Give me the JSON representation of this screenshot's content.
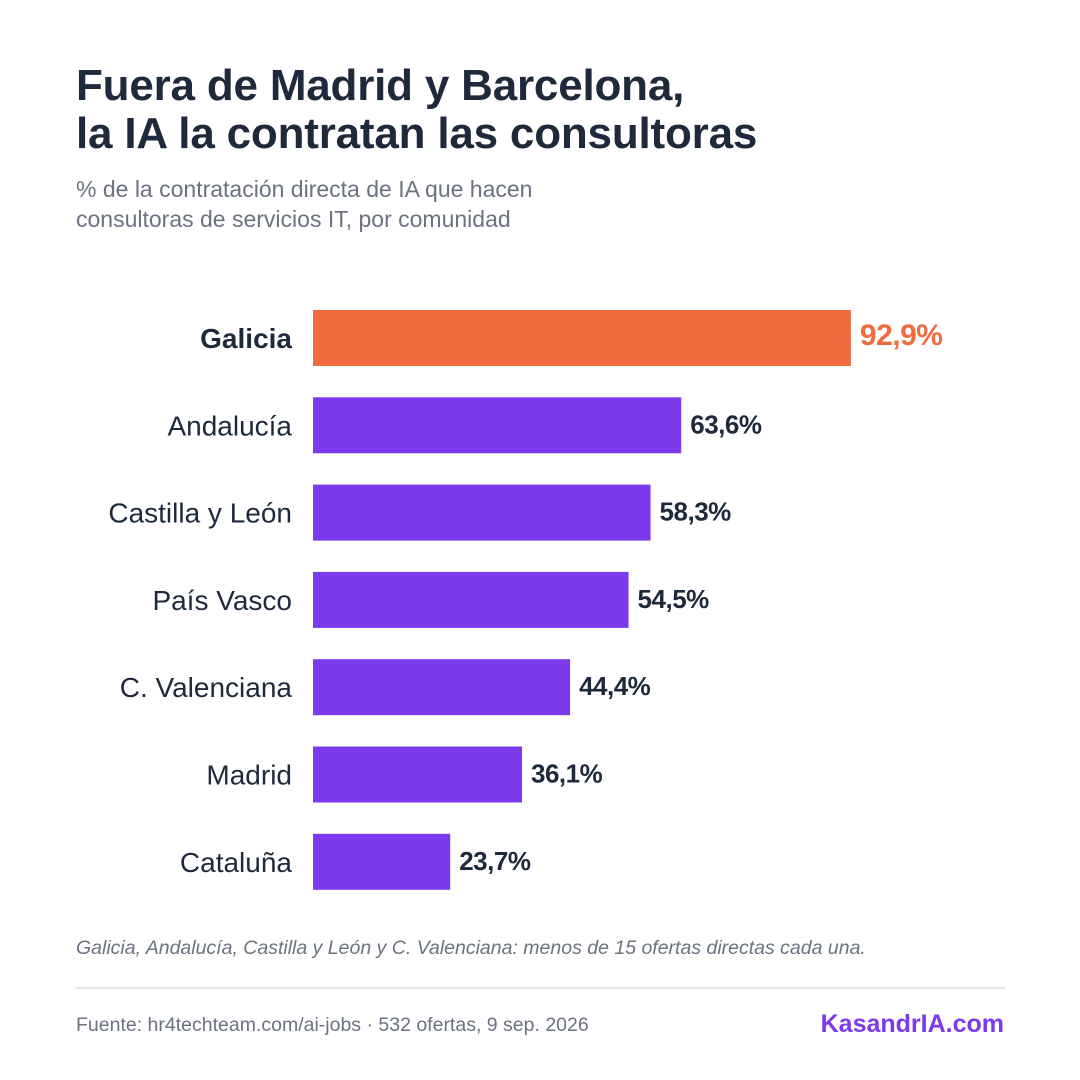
{
  "header": {
    "title_line1": "Fuera de Madrid y Barcelona,",
    "title_line2": "la IA la contratan las consultoras",
    "subtitle_line1": "% de la contratación directa de IA que hacen",
    "subtitle_line2": "consultoras de servicios IT, por comunidad"
  },
  "colors": {
    "highlight": "#F26B3F",
    "bar": "#7B3AEC",
    "text_dark": "#1E293B",
    "text_muted": "#6B7280",
    "brand": "#7C3AED"
  },
  "chart_data": {
    "type": "bar",
    "orientation": "horizontal",
    "categories": [
      "Galicia",
      "Andalucía",
      "Castilla y León",
      "País Vasco",
      "C. Valenciana",
      "Madrid",
      "Cataluña"
    ],
    "values": [
      92.9,
      63.6,
      58.3,
      54.5,
      44.4,
      36.1,
      23.7
    ],
    "value_labels": [
      "92,9%",
      "63,6%",
      "58,3%",
      "54,5%",
      "44,4%",
      "36,1%",
      "23,7%"
    ],
    "highlighted": [
      "Galicia"
    ],
    "unit": "%",
    "xlim": [
      0,
      100
    ],
    "grid": false,
    "legend": "none"
  },
  "footer": {
    "note": "Galicia, Andalucía, Castilla y León y C. Valenciana: menos de 15 ofertas directas cada una.",
    "source": "Fuente: hr4techteam.com/ai-jobs · 532 ofertas, 9 sep. 2026",
    "brand": "KasandrIA.com"
  }
}
